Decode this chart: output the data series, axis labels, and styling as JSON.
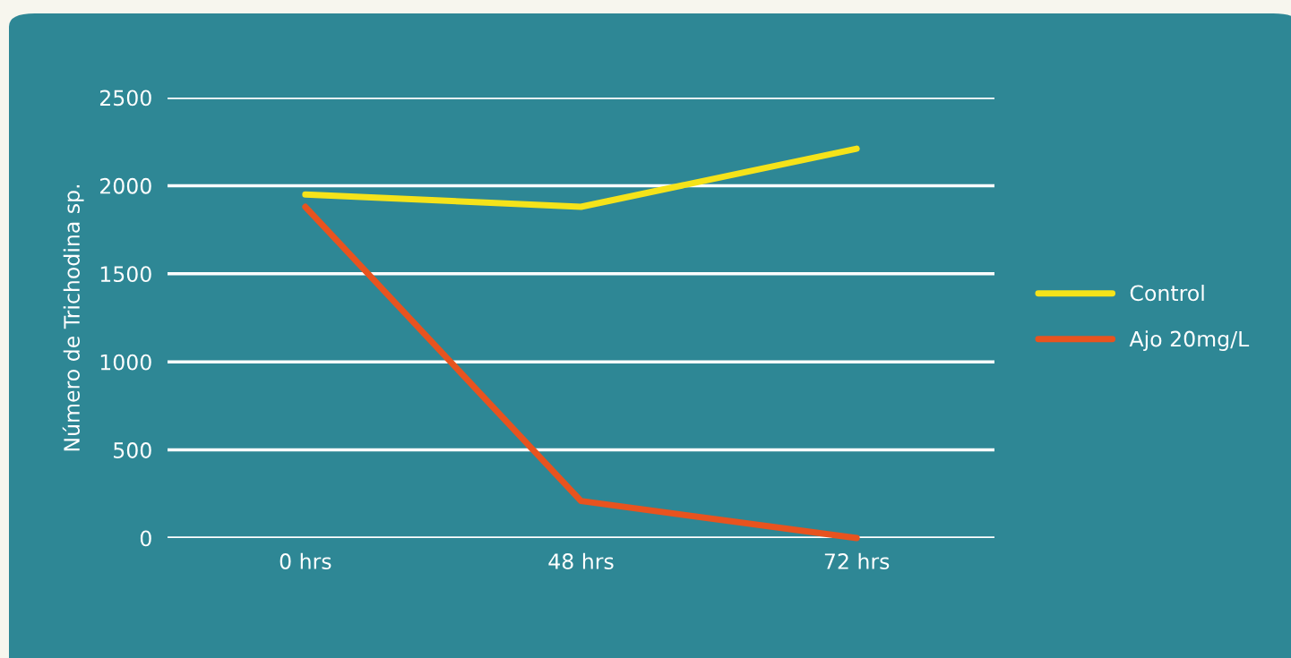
{
  "chart_data": {
    "type": "line",
    "ylabel": "Número de Trichodina sp.",
    "categories": [
      "0 hrs",
      "48 hrs",
      "72 hrs"
    ],
    "series": [
      {
        "name": "Control",
        "color": "#f5e31a",
        "values": [
          1950,
          1880,
          2210
        ]
      },
      {
        "name": "Ajo 20mg/L",
        "color": "#e8531f",
        "values": [
          1880,
          210,
          0
        ]
      }
    ],
    "ylim": [
      0,
      2500
    ],
    "yticks": [
      0,
      500,
      1000,
      1500,
      2000,
      2500
    ],
    "grid": "y",
    "legend": "right",
    "marker": "none",
    "line_style": "solid"
  }
}
